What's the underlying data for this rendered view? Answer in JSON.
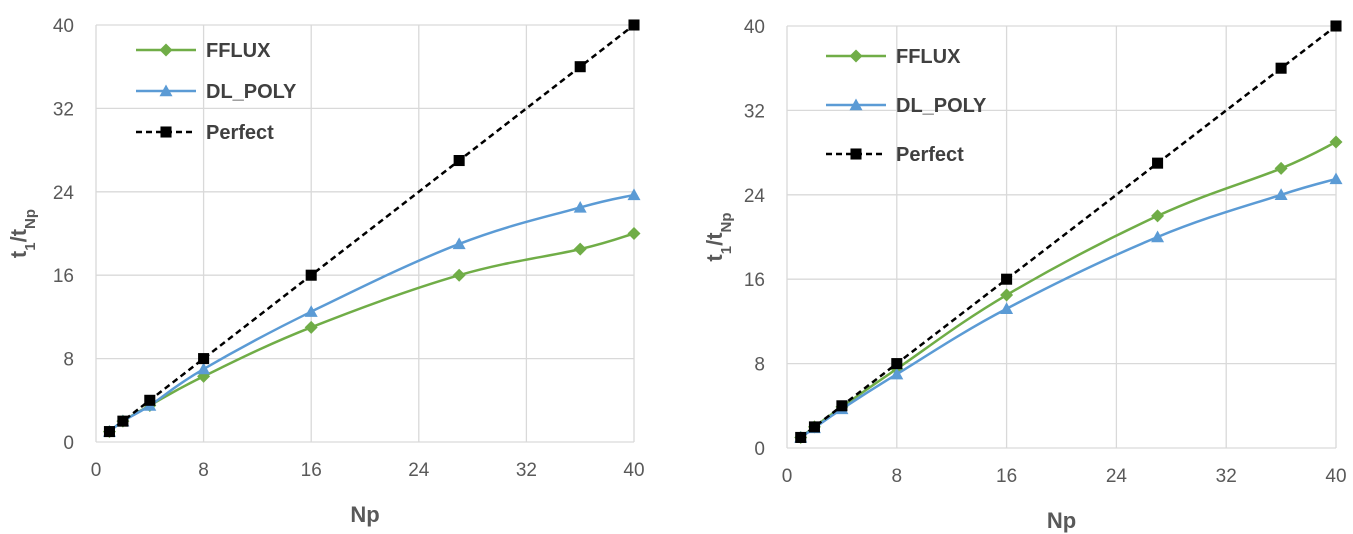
{
  "chart_data": [
    {
      "type": "line",
      "title": "",
      "xlabel": "Np",
      "ylabel": "t1/tNp",
      "xlim": [
        0,
        40
      ],
      "ylim": [
        0,
        40
      ],
      "xticks": [
        "0",
        "8",
        "16",
        "24",
        "32",
        "40"
      ],
      "yticks": [
        "0",
        "8",
        "16",
        "24",
        "32",
        "40"
      ],
      "grid": "vertical-and-horizontal",
      "legend_position": "top-left",
      "series": [
        {
          "name": "FFLUX",
          "color": "#70ad47",
          "marker": "diamond",
          "dash": "solid",
          "x": [
            1,
            2,
            4,
            8,
            16,
            27,
            36,
            40
          ],
          "y": [
            1,
            2,
            3.5,
            6.3,
            11,
            16,
            18.5,
            20
          ]
        },
        {
          "name": "DL_POLY",
          "color": "#5b9bd5",
          "marker": "triangle",
          "dash": "solid",
          "x": [
            1,
            2,
            4,
            8,
            16,
            27,
            36,
            40
          ],
          "y": [
            1,
            2,
            3.5,
            7,
            12.5,
            19,
            22.5,
            23.7
          ]
        },
        {
          "name": "Perfect",
          "color": "#000000",
          "marker": "square",
          "dash": "dashed",
          "x": [
            1,
            2,
            4,
            8,
            16,
            27,
            36,
            40
          ],
          "y": [
            1,
            2,
            4,
            8,
            16,
            27,
            36,
            40
          ]
        }
      ]
    },
    {
      "type": "line",
      "title": "",
      "xlabel": "Np",
      "ylabel": "t1/tNp",
      "xlim": [
        0,
        40
      ],
      "ylim": [
        0,
        40
      ],
      "xticks": [
        "0",
        "8",
        "16",
        "24",
        "32",
        "40"
      ],
      "yticks": [
        "0",
        "8",
        "16",
        "24",
        "32",
        "40"
      ],
      "grid": "vertical-and-horizontal",
      "legend_position": "top-left",
      "series": [
        {
          "name": "FFLUX",
          "color": "#70ad47",
          "marker": "diamond",
          "dash": "solid",
          "x": [
            1,
            2,
            4,
            8,
            16,
            27,
            36,
            40
          ],
          "y": [
            1,
            2,
            3.9,
            7.5,
            14.5,
            22,
            26.5,
            29
          ]
        },
        {
          "name": "DL_POLY",
          "color": "#5b9bd5",
          "marker": "triangle",
          "dash": "solid",
          "x": [
            1,
            2,
            4,
            8,
            16,
            27,
            36,
            40
          ],
          "y": [
            1,
            1.9,
            3.7,
            7,
            13.2,
            20,
            24,
            25.5
          ]
        },
        {
          "name": "Perfect",
          "color": "#000000",
          "marker": "square",
          "dash": "dashed",
          "x": [
            1,
            2,
            4,
            8,
            16,
            27,
            36,
            40
          ],
          "y": [
            1,
            2,
            4,
            8,
            16,
            27,
            36,
            40
          ]
        }
      ]
    }
  ]
}
